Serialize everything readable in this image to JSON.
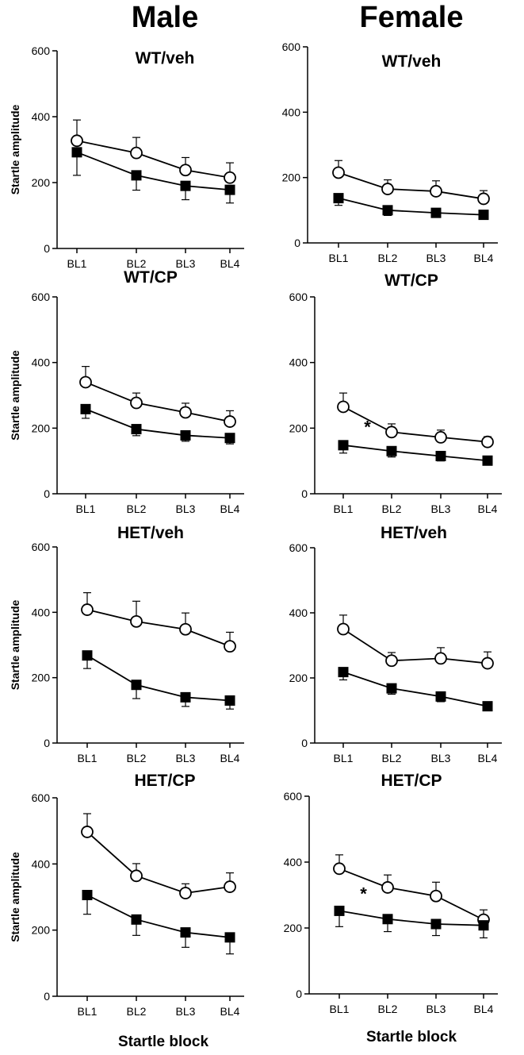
{
  "columns": {
    "male": "Male",
    "female": "Female"
  },
  "chart_data": [
    {
      "type": "line",
      "column": "Male",
      "title": "WT/veh",
      "ylabel": "Startle amplitude",
      "xlabel": "",
      "categories": [
        "BL1",
        "BL2",
        "BL3",
        "BL4"
      ],
      "ylim": [
        0,
        600
      ],
      "yticks": [
        0,
        200,
        400,
        600
      ],
      "series": [
        {
          "name": "open-circle",
          "marker": "circle",
          "values": [
            327,
            290,
            238,
            215
          ],
          "errors": [
            63,
            47,
            38,
            45
          ]
        },
        {
          "name": "filled-square",
          "marker": "square",
          "values": [
            292,
            222,
            190,
            178
          ],
          "errors": [
            70,
            45,
            42,
            40
          ]
        }
      ],
      "annotations": []
    },
    {
      "type": "line",
      "column": "Female",
      "title": "WT/veh",
      "ylabel": "",
      "xlabel": "",
      "categories": [
        "BL1",
        "BL2",
        "BL3",
        "BL4"
      ],
      "ylim": [
        0,
        600
      ],
      "yticks": [
        0,
        200,
        400,
        600
      ],
      "series": [
        {
          "name": "open-circle",
          "marker": "circle",
          "values": [
            215,
            165,
            158,
            135
          ],
          "errors": [
            37,
            28,
            32,
            25
          ]
        },
        {
          "name": "filled-square",
          "marker": "square",
          "values": [
            137,
            100,
            92,
            86
          ],
          "errors": [
            22,
            16,
            12,
            10
          ]
        }
      ],
      "annotations": []
    },
    {
      "type": "line",
      "column": "Male",
      "title": "WT/CP",
      "ylabel": "Startle amplitude",
      "xlabel": "",
      "categories": [
        "BL1",
        "BL2",
        "BL3",
        "BL4"
      ],
      "ylim": [
        0,
        600
      ],
      "yticks": [
        0,
        200,
        400,
        600
      ],
      "series": [
        {
          "name": "open-circle",
          "marker": "circle",
          "values": [
            340,
            277,
            248,
            220
          ],
          "errors": [
            48,
            30,
            28,
            33
          ]
        },
        {
          "name": "filled-square",
          "marker": "square",
          "values": [
            258,
            197,
            178,
            170
          ],
          "errors": [
            28,
            20,
            18,
            18
          ]
        }
      ],
      "annotations": []
    },
    {
      "type": "line",
      "column": "Female",
      "title": "WT/CP",
      "ylabel": "",
      "xlabel": "",
      "categories": [
        "BL1",
        "BL2",
        "BL3",
        "BL4"
      ],
      "ylim": [
        0,
        600
      ],
      "yticks": [
        0,
        200,
        400,
        600
      ],
      "series": [
        {
          "name": "open-circle",
          "marker": "circle",
          "values": [
            265,
            188,
            172,
            158
          ],
          "errors": [
            42,
            25,
            22,
            16
          ]
        },
        {
          "name": "filled-square",
          "marker": "square",
          "values": [
            148,
            130,
            115,
            101
          ],
          "errors": [
            24,
            18,
            15,
            12
          ]
        }
      ],
      "annotations": [
        {
          "text": "*",
          "x": 1.5,
          "y": 205
        }
      ]
    },
    {
      "type": "line",
      "column": "Male",
      "title": "HET/veh",
      "ylabel": "Startle amplitude",
      "xlabel": "",
      "categories": [
        "BL1",
        "BL2",
        "BL3",
        "BL4"
      ],
      "ylim": [
        0,
        600
      ],
      "yticks": [
        0,
        200,
        400,
        600
      ],
      "series": [
        {
          "name": "open-circle",
          "marker": "circle",
          "values": [
            408,
            372,
            348,
            296
          ],
          "errors": [
            52,
            62,
            50,
            43
          ]
        },
        {
          "name": "filled-square",
          "marker": "square",
          "values": [
            268,
            178,
            140,
            130
          ],
          "errors": [
            40,
            42,
            28,
            26
          ]
        }
      ],
      "annotations": []
    },
    {
      "type": "line",
      "column": "Female",
      "title": "HET/veh",
      "ylabel": "",
      "xlabel": "",
      "categories": [
        "BL1",
        "BL2",
        "BL3",
        "BL4"
      ],
      "ylim": [
        0,
        600
      ],
      "yticks": [
        0,
        200,
        400,
        600
      ],
      "series": [
        {
          "name": "open-circle",
          "marker": "circle",
          "values": [
            350,
            253,
            260,
            245
          ],
          "errors": [
            43,
            25,
            33,
            35
          ]
        },
        {
          "name": "filled-square",
          "marker": "square",
          "values": [
            218,
            168,
            143,
            113
          ],
          "errors": [
            24,
            18,
            16,
            12
          ]
        }
      ],
      "annotations": []
    },
    {
      "type": "line",
      "column": "Male",
      "title": "HET/CP",
      "ylabel": "Startle amplitude",
      "xlabel": "Startle block",
      "categories": [
        "BL1",
        "BL2",
        "BL3",
        "BL4"
      ],
      "ylim": [
        0,
        600
      ],
      "yticks": [
        0,
        200,
        400,
        600
      ],
      "series": [
        {
          "name": "open-circle",
          "marker": "circle",
          "values": [
            497,
            364,
            312,
            331
          ],
          "errors": [
            55,
            37,
            28,
            42
          ]
        },
        {
          "name": "filled-square",
          "marker": "square",
          "values": [
            306,
            232,
            193,
            178
          ],
          "errors": [
            58,
            48,
            45,
            50
          ]
        }
      ],
      "annotations": []
    },
    {
      "type": "line",
      "column": "Female",
      "title": "HET/CP",
      "ylabel": "",
      "xlabel": "Startle block",
      "categories": [
        "BL1",
        "BL2",
        "BL3",
        "BL4"
      ],
      "ylim": [
        0,
        600
      ],
      "yticks": [
        0,
        200,
        400,
        600
      ],
      "series": [
        {
          "name": "open-circle",
          "marker": "circle",
          "values": [
            380,
            323,
            297,
            225
          ],
          "errors": [
            42,
            38,
            42,
            30
          ]
        },
        {
          "name": "filled-square",
          "marker": "square",
          "values": [
            252,
            227,
            212,
            208
          ],
          "errors": [
            48,
            38,
            35,
            38
          ]
        }
      ],
      "annotations": [
        {
          "text": "*",
          "x": 1.5,
          "y": 305
        }
      ]
    }
  ]
}
